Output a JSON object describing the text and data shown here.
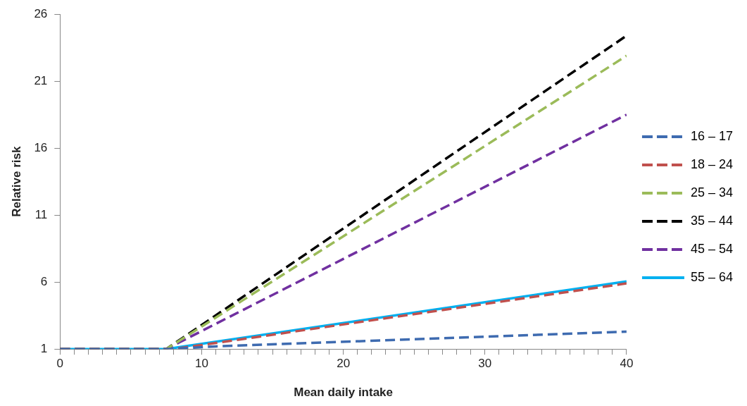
{
  "chart_data": {
    "type": "line",
    "xlabel": "Mean daily intake",
    "ylabel": "Relative risk",
    "xlim": [
      0,
      40
    ],
    "ylim": [
      1,
      26
    ],
    "xticks": [
      0,
      {
        "value": 1,
        "label": null
      },
      {
        "value": 2,
        "label": null
      },
      {
        "value": 3,
        "label": null
      },
      {
        "value": 4,
        "label": null
      },
      {
        "value": 5,
        "label": null
      },
      {
        "value": 6,
        "label": null
      },
      {
        "value": 7,
        "label": null
      },
      {
        "value": 8,
        "label": null
      },
      {
        "value": 9,
        "label": null
      },
      10,
      {
        "value": 11,
        "label": null
      },
      {
        "value": 12,
        "label": null
      },
      {
        "value": 13,
        "label": null
      },
      {
        "value": 14,
        "label": null
      },
      {
        "value": 15,
        "label": null
      },
      {
        "value": 16,
        "label": null
      },
      {
        "value": 17,
        "label": null
      },
      {
        "value": 18,
        "label": null
      },
      {
        "value": 19,
        "label": null
      },
      20,
      {
        "value": 21,
        "label": null
      },
      {
        "value": 22,
        "label": null
      },
      {
        "value": 23,
        "label": null
      },
      {
        "value": 24,
        "label": null
      },
      {
        "value": 25,
        "label": null
      },
      {
        "value": 26,
        "label": null
      },
      {
        "value": 27,
        "label": null
      },
      {
        "value": 28,
        "label": null
      },
      {
        "value": 29,
        "label": null
      },
      30,
      {
        "value": 31,
        "label": null
      },
      {
        "value": 32,
        "label": null
      },
      {
        "value": 33,
        "label": null
      },
      {
        "value": 34,
        "label": null
      },
      {
        "value": 35,
        "label": null
      },
      {
        "value": 36,
        "label": null
      },
      {
        "value": 37,
        "label": null
      },
      {
        "value": 38,
        "label": null
      },
      {
        "value": 39,
        "label": null
      },
      40
    ],
    "yticks": [
      1,
      6,
      11,
      16,
      21,
      26
    ],
    "grid": false,
    "legend": "right",
    "marker": "none",
    "series": [
      {
        "name": "16 – 17",
        "color": "#3e6bb0",
        "line_style": "dashed",
        "x": [
          0,
          7.5,
          11,
          40
        ],
        "values": [
          1,
          1,
          1.2,
          2.3
        ]
      },
      {
        "name": "18 – 24",
        "color": "#c0504d",
        "line_style": "dashed",
        "x": [
          0,
          8,
          40
        ],
        "values": [
          1,
          1,
          5.9
        ]
      },
      {
        "name": "25 – 34",
        "color": "#9bbb59",
        "line_style": "dashed",
        "x": [
          0,
          7.5,
          40
        ],
        "values": [
          1,
          1,
          22.9
        ]
      },
      {
        "name": "35 – 44",
        "color": "#000000",
        "line_style": "dashed",
        "x": [
          0,
          7.5,
          40
        ],
        "values": [
          1,
          1,
          24.4
        ]
      },
      {
        "name": "45 – 54",
        "color": "#7030a0",
        "line_style": "dashed",
        "x": [
          0,
          7.5,
          40
        ],
        "values": [
          1,
          1,
          18.5
        ]
      },
      {
        "name": "55 – 64",
        "color": "#00b0f0",
        "line_style": "solid",
        "x": [
          0,
          7.5,
          40
        ],
        "values": [
          1,
          1,
          6.05
        ]
      }
    ]
  }
}
